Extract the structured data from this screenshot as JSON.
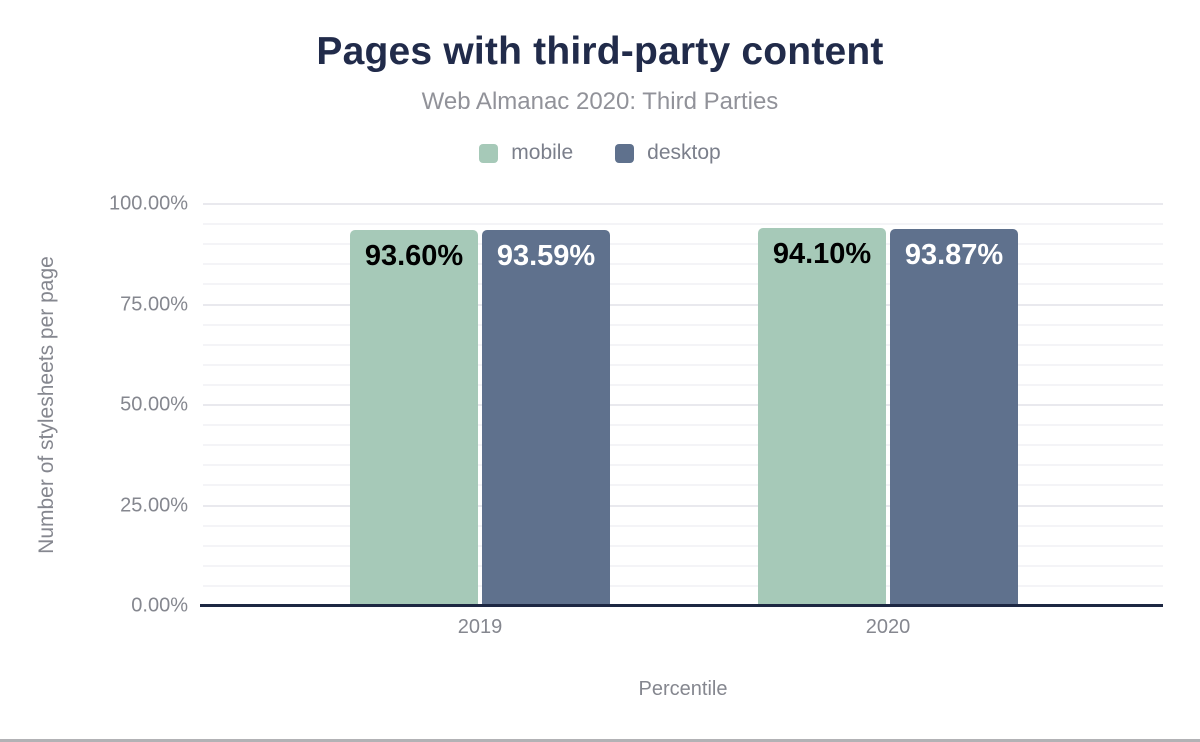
{
  "chart_data": {
    "type": "bar",
    "title": "Pages with third-party content",
    "subtitle": "Web Almanac 2020: Third Parties",
    "categories": [
      "2019",
      "2020"
    ],
    "series": [
      {
        "name": "mobile",
        "color": "#a6c9b8",
        "label_color": "#000000",
        "values": [
          93.6,
          94.1
        ],
        "data_labels": [
          "93.60%",
          "94.10%"
        ]
      },
      {
        "name": "desktop",
        "color": "#5f718d",
        "label_color": "#ffffff",
        "values": [
          93.59,
          93.87
        ],
        "data_labels": [
          "93.59%",
          "93.87%"
        ]
      }
    ],
    "xlabel": "Percentile",
    "ylabel": "Number of stylesheets per page",
    "ylim": [
      0,
      100
    ],
    "y_ticks": [
      {
        "value": 0,
        "label": "0.00%"
      },
      {
        "value": 25,
        "label": "25.00%"
      },
      {
        "value": 50,
        "label": "50.00%"
      },
      {
        "value": 75,
        "label": "75.00%"
      },
      {
        "value": 100,
        "label": "100.00%"
      }
    ],
    "grid": "horizontal",
    "grid_interval": 5,
    "legend_position": "top"
  },
  "colors": {
    "title_text": "#212b4a",
    "subtitle_text": "#919299",
    "axis_text": "#85878f",
    "legend_text": "#7b7f8b",
    "axis_line": "#1d2742",
    "grid_minor": "#f4f4f7",
    "grid_major": "#e9e9ee",
    "mobile_bar": "#a6c9b8",
    "desktop_bar": "#5f718d",
    "bottom_border": "#b2b2b5"
  }
}
